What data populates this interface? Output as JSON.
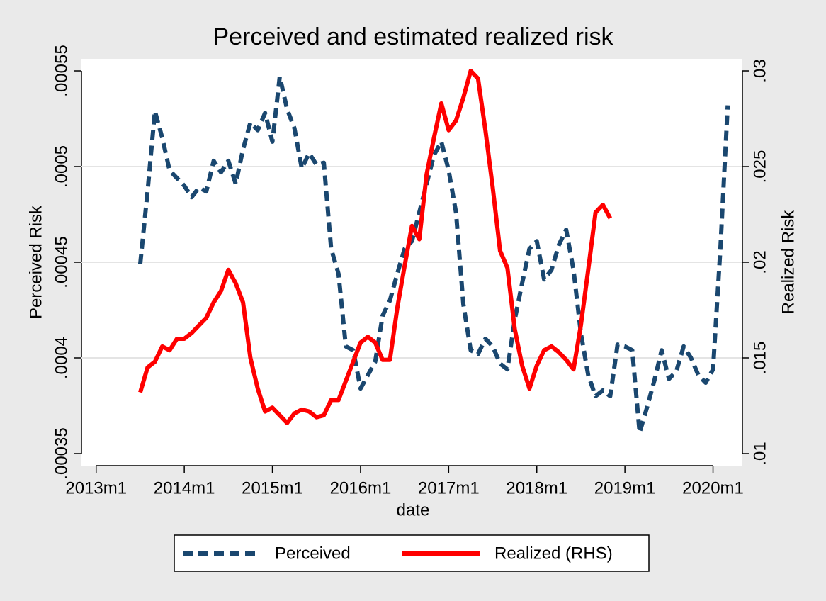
{
  "chart_data": {
    "type": "line",
    "title": "Perceived and estimated realized risk",
    "x_label": "date",
    "y_label": "Perceived Risk",
    "y2_label": "Realized Risk",
    "x": [
      "2013m7",
      "2013m8",
      "2013m9",
      "2013m10",
      "2013m11",
      "2013m12",
      "2014m1",
      "2014m2",
      "2014m3",
      "2014m4",
      "2014m5",
      "2014m6",
      "2014m7",
      "2014m8",
      "2014m9",
      "2014m10",
      "2014m11",
      "2014m12",
      "2015m1",
      "2015m2",
      "2015m3",
      "2015m4",
      "2015m5",
      "2015m6",
      "2015m7",
      "2015m8",
      "2015m9",
      "2015m10",
      "2015m11",
      "2015m12",
      "2016m1",
      "2016m2",
      "2016m3",
      "2016m4",
      "2016m5",
      "2016m6",
      "2016m7",
      "2016m8",
      "2016m9",
      "2016m10",
      "2016m11",
      "2016m12",
      "2017m1",
      "2017m2",
      "2017m3",
      "2017m4",
      "2017m5",
      "2017m6",
      "2017m7",
      "2017m8",
      "2017m9",
      "2017m10",
      "2017m11",
      "2017m12",
      "2018m1",
      "2018m2",
      "2018m3",
      "2018m4",
      "2018m5",
      "2018m6",
      "2018m7",
      "2018m8",
      "2018m9",
      "2018m10",
      "2018m11",
      "2018m12",
      "2019m1",
      "2019m2",
      "2019m3",
      "2019m4",
      "2019m5",
      "2019m6",
      "2019m7",
      "2019m8",
      "2019m9",
      "2019m10",
      "2019m11",
      "2019m12",
      "2020m1",
      "2020m2",
      "2020m3"
    ],
    "xlim": [
      "2012m11",
      "2020m5"
    ],
    "xticks": [
      "2013m1",
      "2014m1",
      "2015m1",
      "2016m1",
      "2017m1",
      "2018m1",
      "2019m1",
      "2020m1"
    ],
    "ylim": [
      0.0003437,
      0.0005563
    ],
    "yticks": [
      {
        "value": 0.00035,
        "label": ".00035"
      },
      {
        "value": 0.0004,
        "label": ".0004"
      },
      {
        "value": 0.00045,
        "label": ".00045"
      },
      {
        "value": 0.0005,
        "label": ".0005"
      },
      {
        "value": 0.00055,
        "label": ".00055"
      }
    ],
    "y2lim": [
      0.00937,
      0.03063
    ],
    "y2ticks": [
      {
        "value": 0.01,
        "label": ".01"
      },
      {
        "value": 0.015,
        "label": ".015"
      },
      {
        "value": 0.02,
        "label": ".02"
      },
      {
        "value": 0.025,
        "label": ".025"
      },
      {
        "value": 0.03,
        "label": ".03"
      }
    ],
    "grid": true,
    "series": [
      {
        "name": "Perceived",
        "color": "#1a476f",
        "dashed": true,
        "values": [
          0.000449,
          0.000487,
          0.000529,
          0.000515,
          0.000498,
          0.000494,
          0.00049,
          0.000484,
          0.000489,
          0.000487,
          0.000503,
          0.000497,
          0.000503,
          0.000491,
          0.000509,
          0.000523,
          0.000519,
          0.000528,
          0.000513,
          0.000547,
          0.00053,
          0.00052,
          0.000499,
          0.000507,
          0.000501,
          0.000502,
          0.000457,
          0.000444,
          0.000406,
          0.000404,
          0.000384,
          0.000391,
          0.000398,
          0.000422,
          0.00043,
          0.000444,
          0.000457,
          0.000461,
          0.000476,
          0.000491,
          0.000506,
          0.000513,
          0.000498,
          0.000476,
          0.000428,
          0.000404,
          0.000402,
          0.00041,
          0.000406,
          0.000397,
          0.000394,
          0.00042,
          0.000439,
          0.000457,
          0.000461,
          0.000441,
          0.000446,
          0.000459,
          0.000467,
          0.000446,
          0.000413,
          0.000391,
          0.00038,
          0.000383,
          0.00038,
          0.000407,
          0.000406,
          0.000404,
          0.000361,
          0.000374,
          0.000388,
          0.000404,
          0.000389,
          0.000393,
          0.000406,
          0.0004,
          0.000391,
          0.000387,
          0.000394,
          0.000457,
          0.000532
        ]
      },
      {
        "name": "Realized (RHS)",
        "color": "#ff0000",
        "axis": "y2",
        "values": [
          0.0132,
          0.0145,
          0.0148,
          0.0156,
          0.0154,
          0.016,
          0.016,
          0.0163,
          0.0167,
          0.0171,
          0.0179,
          0.0185,
          0.0196,
          0.0189,
          0.0179,
          0.015,
          0.0134,
          0.0122,
          0.0124,
          0.012,
          0.0116,
          0.0121,
          0.0123,
          0.0122,
          0.0119,
          0.012,
          0.0128,
          0.0128,
          0.0138,
          0.0148,
          0.0158,
          0.0161,
          0.0158,
          0.0149,
          0.0149,
          0.0176,
          0.0198,
          0.0219,
          0.0212,
          0.0246,
          0.0265,
          0.0283,
          0.0269,
          0.0274,
          0.0286,
          0.03,
          0.0296,
          0.0269,
          0.0239,
          0.0206,
          0.0197,
          0.0165,
          0.0146,
          0.0134,
          0.0146,
          0.0154,
          0.0156,
          0.0153,
          0.0149,
          0.0144,
          0.0167,
          0.0196,
          0.0226,
          0.023,
          0.0223,
          null,
          null,
          null,
          null,
          null,
          null,
          null,
          null,
          null,
          null,
          null,
          null,
          null,
          null,
          null,
          null
        ]
      }
    ]
  }
}
